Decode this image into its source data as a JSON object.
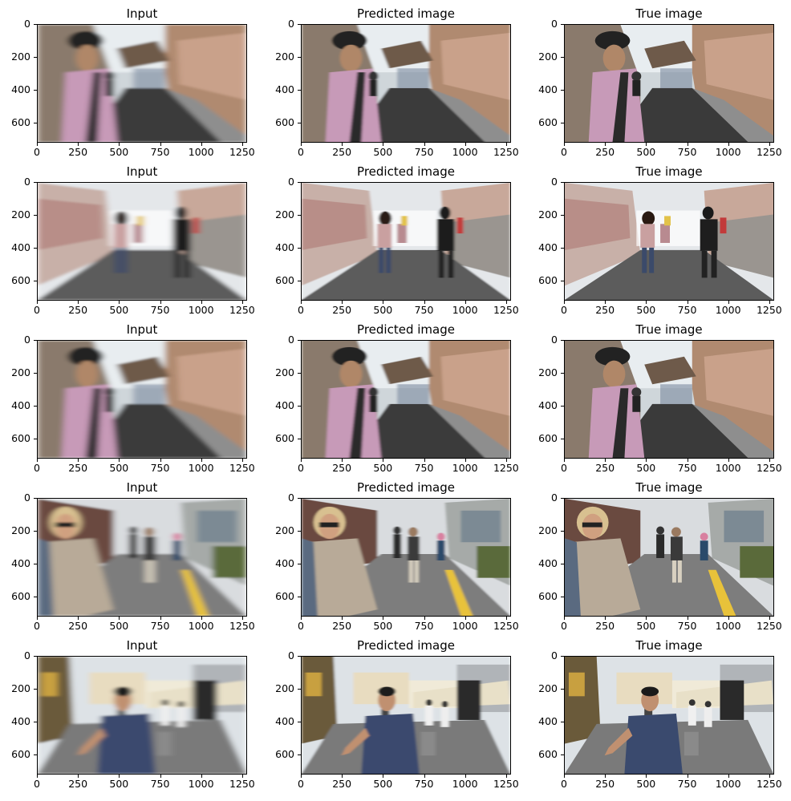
{
  "figure": {
    "columns": [
      "Input",
      "Predicted image",
      "True image"
    ],
    "x_ticks": [
      "0",
      "250",
      "500",
      "750",
      "1000",
      "1250"
    ],
    "y_ticks": [
      "0",
      "200",
      "400",
      "600"
    ],
    "x_range": [
      0,
      1280
    ],
    "y_range": [
      720,
      0
    ]
  },
  "rows": [
    {
      "scene": "street-hanbok-man",
      "blur": [
        4,
        1.5,
        0
      ]
    },
    {
      "scene": "wall-street-people",
      "blur": [
        4,
        1.5,
        0
      ]
    },
    {
      "scene": "street-hanbok-man",
      "blur": [
        4,
        1.5,
        0
      ]
    },
    {
      "scene": "blonde-woman-street",
      "blur": [
        4,
        1.5,
        0
      ]
    },
    {
      "scene": "shopping-street-man",
      "blur": [
        4,
        1.5,
        0
      ]
    }
  ]
}
